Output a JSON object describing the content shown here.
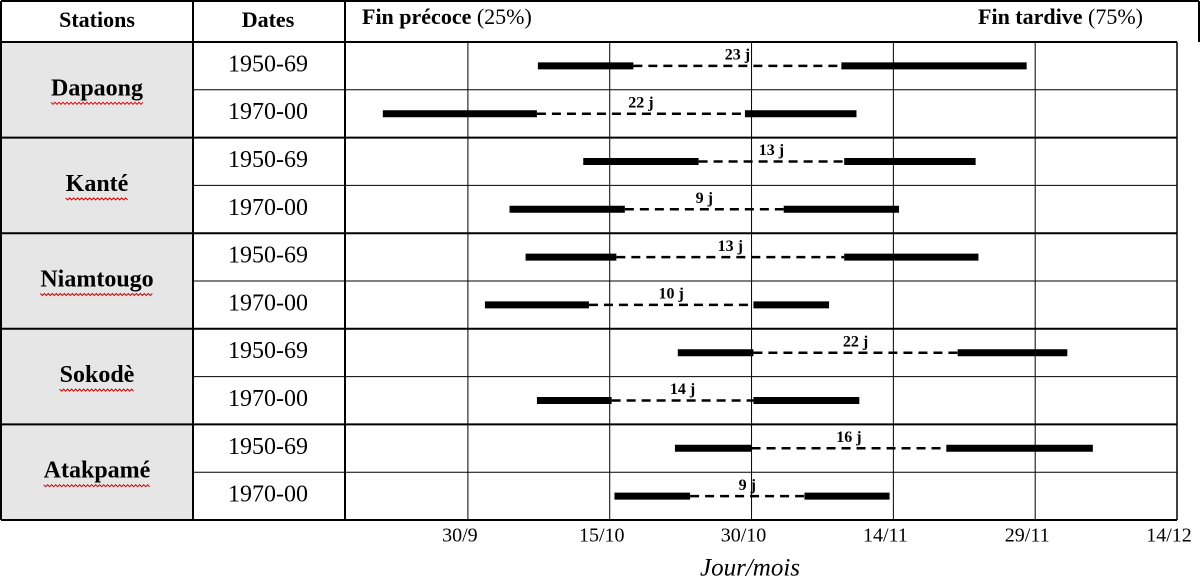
{
  "chart_data": {
    "type": "range",
    "header": {
      "stations": "Stations",
      "dates": "Dates",
      "early": "Fin précoce",
      "early_pct": "(25%)",
      "late": "Fin tardive",
      "late_pct": "(75%)"
    },
    "x_label": "Jour/mois",
    "xlim": [
      260,
      348
    ],
    "xticks": [
      {
        "value": 273,
        "label": "30/9"
      },
      {
        "value": 288,
        "label": "15/10"
      },
      {
        "value": 303,
        "label": "30/10"
      },
      {
        "value": 318,
        "label": "14/11"
      },
      {
        "value": 333,
        "label": "29/11"
      },
      {
        "value": 348,
        "label": "14/12"
      }
    ],
    "grid": true,
    "color": "#000000",
    "groups": [
      {
        "name": "Dapaong",
        "periods": [
          "1950-69",
          "1970-00"
        ],
        "ranges": [
          [
            280.4,
            290.5,
            312.5,
            332.1
          ],
          [
            264.0,
            280.3,
            302.3,
            314.1
          ]
        ],
        "gaps": [
          23,
          22
        ],
        "gap_labels": [
          "23 j",
          "22 j"
        ]
      },
      {
        "name": "Kanté",
        "periods": [
          "1950-69",
          "1970-00"
        ],
        "ranges": [
          [
            285.2,
            297.4,
            312.8,
            326.7
          ],
          [
            277.4,
            289.6,
            306.4,
            318.6
          ]
        ],
        "gaps": [
          13,
          9
        ],
        "gap_labels": [
          "13 j",
          "9 j"
        ]
      },
      {
        "name": "Niamtougo",
        "periods": [
          "1950-69",
          "1970-00"
        ],
        "ranges": [
          [
            279.1,
            288.7,
            312.8,
            327.0
          ],
          [
            274.8,
            285.8,
            303.2,
            311.2
          ]
        ],
        "gaps": [
          13,
          10
        ],
        "gap_labels": [
          "13 j",
          "10 j"
        ]
      },
      {
        "name": "Sokodè",
        "periods": [
          "1950-69",
          "1970-00"
        ],
        "ranges": [
          [
            295.2,
            303.2,
            324.8,
            336.4
          ],
          [
            280.3,
            288.2,
            303.2,
            314.4
          ]
        ],
        "gaps": [
          22,
          14
        ],
        "gap_labels": [
          "22 j",
          "14 j"
        ]
      },
      {
        "name": "Atakpamé",
        "periods": [
          "1950-69",
          "1970-00"
        ],
        "ranges": [
          [
            294.9,
            303.0,
            323.6,
            339.1
          ],
          [
            288.5,
            296.5,
            308.6,
            317.6
          ]
        ],
        "gaps": [
          16,
          9
        ],
        "gap_labels": [
          "16 j",
          "9 j"
        ]
      }
    ]
  }
}
